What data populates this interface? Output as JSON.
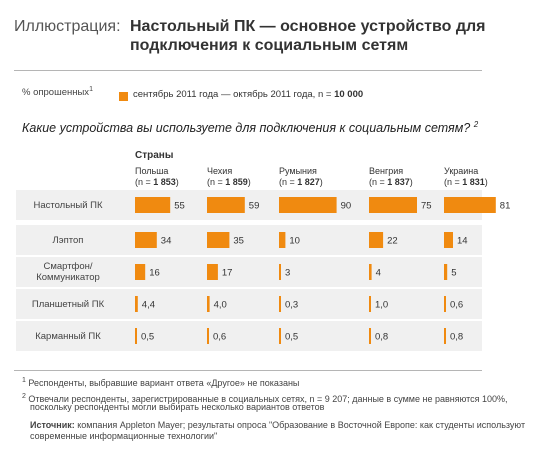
{
  "header": {
    "label": "Иллюстрация:",
    "title": "Настольный ПК — основное устройство для подключения к социальным сетям"
  },
  "unit": {
    "text": "% опрошенных",
    "sup": "1"
  },
  "legend": {
    "text": "сентябрь 2011 года — октябрь 2011 года, n = ",
    "n": "10 000",
    "color": "#f08a10"
  },
  "question": {
    "text": "Какие устройства вы используете для подключения к социальным сетям?",
    "sup": "2"
  },
  "countries_heading": "Страны",
  "colors": {
    "bar": "#f08a10",
    "band": "#f0f0f0",
    "divider": "#b5b5b5"
  },
  "chart_data": {
    "type": "bar",
    "orientation": "horizontal",
    "categories": [
      "Настольный ПК",
      "Лэптоп",
      "Смартфон/\nКоммуникатор",
      "Планшетный ПК",
      "Карманный ПК"
    ],
    "series": [
      {
        "name": "Польша",
        "n_text": "(n = ",
        "n": "1 853",
        "n_close": ")",
        "values": [
          55,
          34,
          16,
          4.4,
          0.5
        ],
        "labels": [
          "55",
          "34",
          "16",
          "4,4",
          "0,5"
        ]
      },
      {
        "name": "Чехия",
        "n_text": "(n = ",
        "n": "1 859",
        "n_close": ")",
        "values": [
          59,
          35,
          17,
          4.0,
          0.6
        ],
        "labels": [
          "59",
          "35",
          "17",
          "4,0",
          "0,6"
        ]
      },
      {
        "name": "Румыния",
        "n_text": "(n = ",
        "n": "1 827",
        "n_close": ")",
        "values": [
          90,
          10,
          3,
          0.3,
          0.5
        ],
        "labels": [
          "90",
          "10",
          "3",
          "0,3",
          "0,5"
        ]
      },
      {
        "name": "Венгрия",
        "n_text": "(n = ",
        "n": "1 837",
        "n_close": ")",
        "values": [
          75,
          22,
          4,
          1.0,
          0.8
        ],
        "labels": [
          "75",
          "22",
          "4",
          "1,0",
          "0,8"
        ]
      },
      {
        "name": "Украина",
        "n_text": "(n = ",
        "n": "1 831",
        "n_close": ")",
        "values": [
          81,
          14,
          5,
          0.6,
          0.8
        ],
        "labels": [
          "81",
          "14",
          "5",
          "0,6",
          "0,8"
        ]
      }
    ],
    "xlim": [
      0,
      100
    ]
  },
  "footnotes": {
    "f1_sup": "1",
    "f1": "Респонденты, выбравшие вариант ответа «Другое» не показаны",
    "f2_sup": "2",
    "f2_line1": "Отвечали респонденты, зарегистрированные в социальных сетях,  n = 9 207; данные в сумме не равняются 100%,",
    "f2_line2": "поскольку респонденты могли выбирать несколько вариантов ответов",
    "source_label": "Источник:",
    "source_line1": " компания Appleton Mayer; результаты опроса \"Образование в Восточной Европе: как студенты используют",
    "source_line2": "современные информационные технологии\""
  }
}
